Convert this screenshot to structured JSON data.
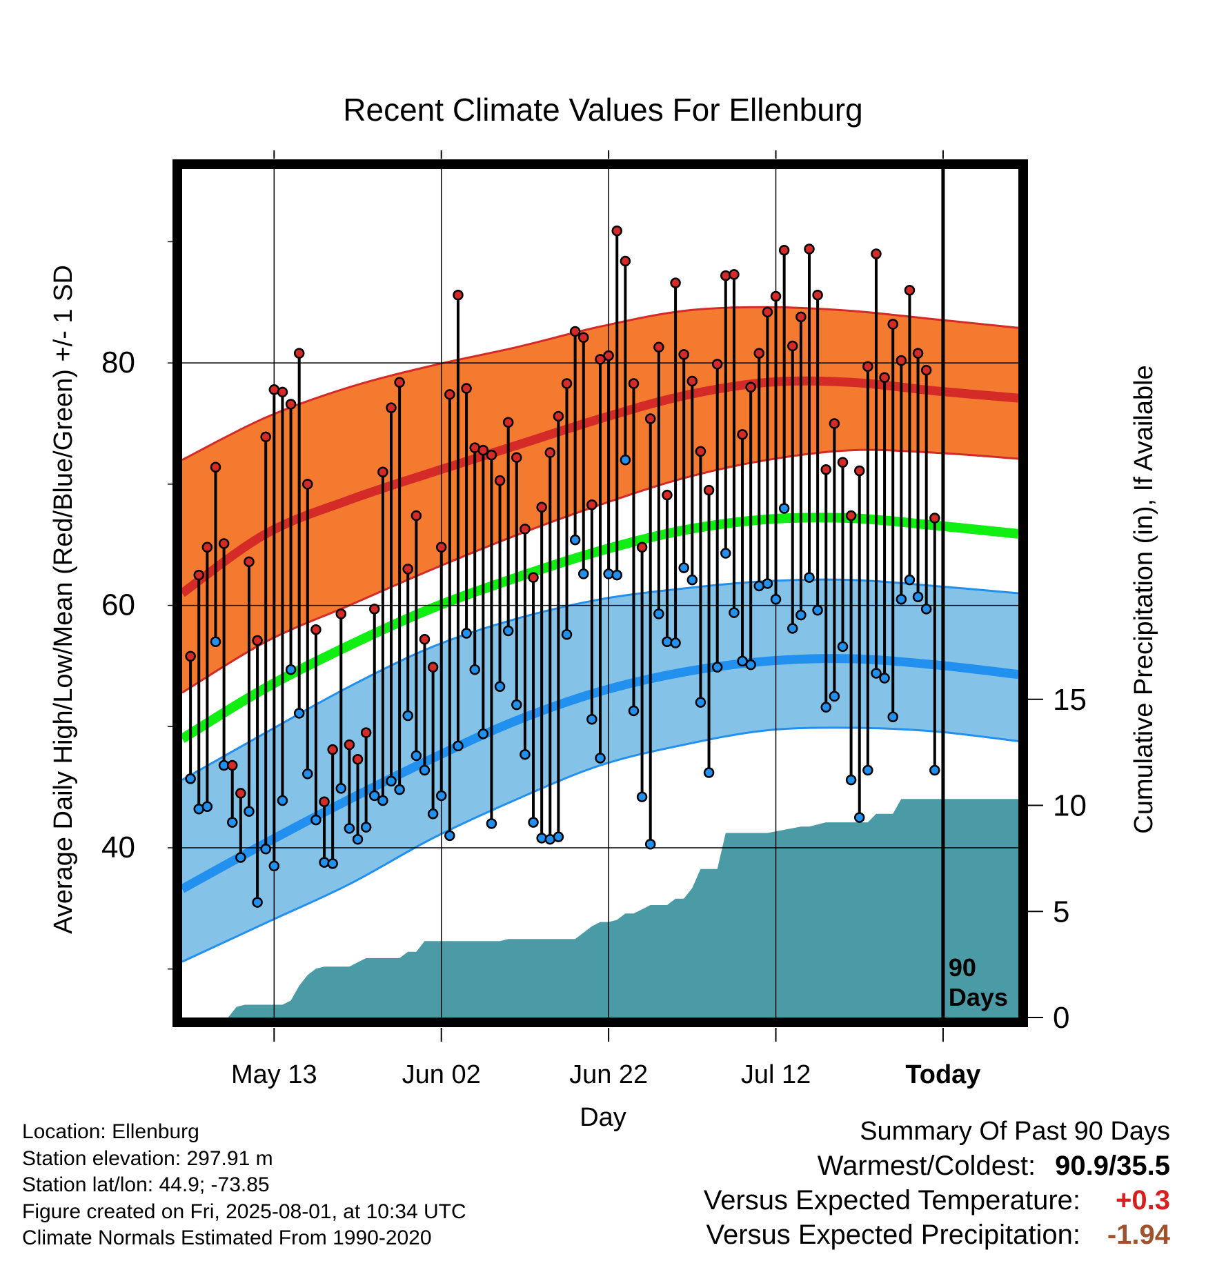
{
  "chart_data": {
    "type": "line",
    "title": "Recent Climate Values For Ellenburg",
    "xlabel": "Day",
    "ylabel": "Average Daily High/Low/Mean (Red/Blue/Green) +/- 1 SD",
    "ylabel_right": "Cumulative Precipitation (in), If Available",
    "x_ticks": [
      {
        "day": 10,
        "label": "May 13"
      },
      {
        "day": 30,
        "label": "Jun 02"
      },
      {
        "day": 50,
        "label": "Jun 22"
      },
      {
        "day": 70,
        "label": "Jul 12"
      },
      {
        "day": 90,
        "label": "Today"
      }
    ],
    "xlim": [
      -1,
      99
    ],
    "ylim": [
      26,
      96
    ],
    "y_ticks": [
      40,
      60,
      80
    ],
    "y2lim": [
      0,
      40
    ],
    "y2_ticks": [
      0,
      5,
      10,
      15
    ],
    "today_marker": {
      "day": 90,
      "label_line1": "90",
      "label_line2": "Days"
    },
    "normals": {
      "high_mean": [
        [
          -1,
          61.0
        ],
        [
          9,
          65.9
        ],
        [
          19,
          68.7
        ],
        [
          29,
          71.0
        ],
        [
          39,
          73.2
        ],
        [
          49,
          75.4
        ],
        [
          59,
          77.3
        ],
        [
          69,
          78.4
        ],
        [
          79,
          78.4
        ],
        [
          89,
          77.7
        ],
        [
          99,
          77.1
        ]
      ],
      "high_sd_upper": [
        [
          -1,
          72.0
        ],
        [
          9,
          75.5
        ],
        [
          19,
          78.0
        ],
        [
          29,
          79.8
        ],
        [
          39,
          81.3
        ],
        [
          49,
          83.0
        ],
        [
          59,
          84.3
        ],
        [
          69,
          84.6
        ],
        [
          79,
          84.3
        ],
        [
          89,
          83.6
        ],
        [
          99,
          82.9
        ]
      ],
      "high_sd_lower": [
        [
          -1,
          52.8
        ],
        [
          9,
          57.0
        ],
        [
          19,
          60.0
        ],
        [
          29,
          63.0
        ],
        [
          39,
          65.8
        ],
        [
          49,
          68.3
        ],
        [
          59,
          70.5
        ],
        [
          69,
          72.0
        ],
        [
          79,
          72.8
        ],
        [
          89,
          72.6
        ],
        [
          99,
          72.1
        ]
      ],
      "mean_normal": [
        [
          -1,
          49.0
        ],
        [
          9,
          53.2
        ],
        [
          19,
          56.7
        ],
        [
          29,
          59.8
        ],
        [
          39,
          62.3
        ],
        [
          49,
          64.5
        ],
        [
          59,
          66.2
        ],
        [
          69,
          67.1
        ],
        [
          79,
          67.2
        ],
        [
          89,
          66.6
        ],
        [
          99,
          65.9
        ]
      ],
      "low_mean": [
        [
          -1,
          36.6
        ],
        [
          9,
          40.4
        ],
        [
          19,
          44.0
        ],
        [
          29,
          47.4
        ],
        [
          39,
          50.5
        ],
        [
          49,
          52.9
        ],
        [
          59,
          54.5
        ],
        [
          69,
          55.4
        ],
        [
          79,
          55.6
        ],
        [
          89,
          55.1
        ],
        [
          99,
          54.3
        ]
      ],
      "low_sd_upper": [
        [
          -1,
          45.6
        ],
        [
          9,
          49.5
        ],
        [
          19,
          53.3
        ],
        [
          29,
          56.6
        ],
        [
          39,
          58.9
        ],
        [
          49,
          60.5
        ],
        [
          59,
          61.4
        ],
        [
          69,
          62.0
        ],
        [
          79,
          62.1
        ],
        [
          89,
          61.6
        ],
        [
          99,
          61.0
        ]
      ],
      "low_sd_lower": [
        [
          -1,
          30.6
        ],
        [
          9,
          33.8
        ],
        [
          19,
          37.0
        ],
        [
          29,
          40.8
        ],
        [
          39,
          44.0
        ],
        [
          49,
          46.8
        ],
        [
          59,
          48.5
        ],
        [
          69,
          49.7
        ],
        [
          79,
          49.9
        ],
        [
          89,
          49.6
        ],
        [
          99,
          48.8
        ]
      ]
    },
    "daily_temps": [
      {
        "day": 0,
        "high": 55.8,
        "low": 45.7
      },
      {
        "day": 1,
        "high": 62.5,
        "low": 43.2
      },
      {
        "day": 2,
        "high": 64.8,
        "low": 43.4
      },
      {
        "day": 3,
        "high": 71.4,
        "low": 57.0
      },
      {
        "day": 4,
        "high": 65.1,
        "low": 46.8
      },
      {
        "day": 5,
        "high": 46.8,
        "low": 42.1
      },
      {
        "day": 6,
        "high": 44.5,
        "low": 39.2
      },
      {
        "day": 7,
        "high": 63.6,
        "low": 43.0
      },
      {
        "day": 8,
        "high": 57.1,
        "low": 35.5
      },
      {
        "day": 9,
        "high": 73.9,
        "low": 39.9
      },
      {
        "day": 10,
        "high": 77.8,
        "low": 38.5
      },
      {
        "day": 11,
        "high": 77.6,
        "low": 43.9
      },
      {
        "day": 12,
        "high": 76.6,
        "low": 54.7
      },
      {
        "day": 13,
        "high": 80.8,
        "low": 51.1
      },
      {
        "day": 14,
        "high": 70.0,
        "low": 46.1
      },
      {
        "day": 15,
        "high": 58.0,
        "low": 42.3
      },
      {
        "day": 16,
        "high": 43.8,
        "low": 38.8
      },
      {
        "day": 17,
        "high": 48.1,
        "low": 38.7
      },
      {
        "day": 18,
        "high": 59.3,
        "low": 44.9
      },
      {
        "day": 19,
        "high": 48.5,
        "low": 41.6
      },
      {
        "day": 20,
        "high": 47.3,
        "low": 40.7
      },
      {
        "day": 21,
        "high": 49.5,
        "low": 41.7
      },
      {
        "day": 22,
        "high": 59.7,
        "low": 44.3
      },
      {
        "day": 23,
        "high": 71.0,
        "low": 43.9
      },
      {
        "day": 24,
        "high": 76.3,
        "low": 45.5
      },
      {
        "day": 25,
        "high": 78.4,
        "low": 44.8
      },
      {
        "day": 26,
        "high": 63.0,
        "low": 50.9
      },
      {
        "day": 27,
        "high": 67.4,
        "low": 47.6
      },
      {
        "day": 28,
        "high": 57.2,
        "low": 46.4
      },
      {
        "day": 29,
        "high": 54.9,
        "low": 42.8
      },
      {
        "day": 30,
        "high": 64.8,
        "low": 44.3
      },
      {
        "day": 31,
        "high": 77.4,
        "low": 41.0
      },
      {
        "day": 32,
        "high": 85.6,
        "low": 48.4
      },
      {
        "day": 33,
        "high": 77.9,
        "low": 57.7
      },
      {
        "day": 34,
        "high": 73.0,
        "low": 54.7
      },
      {
        "day": 35,
        "high": 72.8,
        "low": 49.4
      },
      {
        "day": 36,
        "high": 72.4,
        "low": 42.0
      },
      {
        "day": 37,
        "high": 70.3,
        "low": 53.3
      },
      {
        "day": 38,
        "high": 75.1,
        "low": 57.9
      },
      {
        "day": 39,
        "high": 72.2,
        "low": 51.8
      },
      {
        "day": 40,
        "high": 66.3,
        "low": 47.7
      },
      {
        "day": 41,
        "high": 62.3,
        "low": 42.1
      },
      {
        "day": 42,
        "high": 68.1,
        "low": 40.8
      },
      {
        "day": 43,
        "high": 72.6,
        "low": 40.7
      },
      {
        "day": 44,
        "high": 75.6,
        "low": 40.9
      },
      {
        "day": 45,
        "high": 78.3,
        "low": 57.6
      },
      {
        "day": 46,
        "high": 82.6,
        "low": 65.4
      },
      {
        "day": 47,
        "high": 82.1,
        "low": 62.6
      },
      {
        "day": 48,
        "high": 68.3,
        "low": 50.6
      },
      {
        "day": 49,
        "high": 80.3,
        "low": 47.4
      },
      {
        "day": 50,
        "high": 80.6,
        "low": 62.6
      },
      {
        "day": 51,
        "high": 90.9,
        "low": 62.5
      },
      {
        "day": 52,
        "high": 88.4,
        "low": 72.0
      },
      {
        "day": 53,
        "high": 78.3,
        "low": 51.3
      },
      {
        "day": 54,
        "high": 64.8,
        "low": 44.2
      },
      {
        "day": 55,
        "high": 75.4,
        "low": 40.3
      },
      {
        "day": 56,
        "high": 81.3,
        "low": 59.3
      },
      {
        "day": 57,
        "high": 69.1,
        "low": 57.0
      },
      {
        "day": 58,
        "high": 86.6,
        "low": 56.9
      },
      {
        "day": 59,
        "high": 80.7,
        "low": 63.1
      },
      {
        "day": 60,
        "high": 78.5,
        "low": 62.1
      },
      {
        "day": 61,
        "high": 72.7,
        "low": 52.0
      },
      {
        "day": 62,
        "high": 69.5,
        "low": 46.2
      },
      {
        "day": 63,
        "high": 79.9,
        "low": 54.9
      },
      {
        "day": 64,
        "high": 87.2,
        "low": 64.3
      },
      {
        "day": 65,
        "high": 87.3,
        "low": 59.4
      },
      {
        "day": 66,
        "high": 74.1,
        "low": 55.4
      },
      {
        "day": 67,
        "high": 78.0,
        "low": 55.1
      },
      {
        "day": 68,
        "high": 80.8,
        "low": 61.6
      },
      {
        "day": 69,
        "high": 84.2,
        "low": 61.8
      },
      {
        "day": 70,
        "high": 85.5,
        "low": 60.5
      },
      {
        "day": 71,
        "high": 89.3,
        "low": 68.0
      },
      {
        "day": 72,
        "high": 81.4,
        "low": 58.1
      },
      {
        "day": 73,
        "high": 83.8,
        "low": 59.2
      },
      {
        "day": 74,
        "high": 89.4,
        "low": 62.3
      },
      {
        "day": 75,
        "high": 85.6,
        "low": 59.6
      },
      {
        "day": 76,
        "high": 71.2,
        "low": 51.6
      },
      {
        "day": 77,
        "high": 75.0,
        "low": 52.5
      },
      {
        "day": 78,
        "high": 71.8,
        "low": 56.6
      },
      {
        "day": 79,
        "high": 67.4,
        "low": 45.6
      },
      {
        "day": 80,
        "high": 71.1,
        "low": 42.5
      },
      {
        "day": 81,
        "high": 79.7,
        "low": 46.4
      },
      {
        "day": 82,
        "high": 89.0,
        "low": 54.4
      },
      {
        "day": 83,
        "high": 78.8,
        "low": 54.0
      },
      {
        "day": 84,
        "high": 83.2,
        "low": 50.8
      },
      {
        "day": 85,
        "high": 80.2,
        "low": 60.5
      },
      {
        "day": 86,
        "high": 86.0,
        "low": 62.1
      },
      {
        "day": 87,
        "high": 80.8,
        "low": 60.7
      },
      {
        "day": 88,
        "high": 79.4,
        "low": 59.7
      },
      {
        "day": 89,
        "high": 67.2,
        "low": 46.4
      }
    ],
    "cumulative_precip": [
      [
        -1,
        0.0
      ],
      [
        4.5,
        0.0
      ],
      [
        5.5,
        0.5
      ],
      [
        6.5,
        0.6
      ],
      [
        11,
        0.6
      ],
      [
        12,
        0.8
      ],
      [
        13,
        1.5
      ],
      [
        14,
        2.0
      ],
      [
        15,
        2.3
      ],
      [
        16,
        2.4
      ],
      [
        19,
        2.4
      ],
      [
        20,
        2.6
      ],
      [
        21,
        2.8
      ],
      [
        25,
        2.8
      ],
      [
        26,
        3.1
      ],
      [
        27,
        3.1
      ],
      [
        28,
        3.6
      ],
      [
        37,
        3.6
      ],
      [
        38,
        3.7
      ],
      [
        46,
        3.7
      ],
      [
        47,
        4.0
      ],
      [
        48,
        4.3
      ],
      [
        49,
        4.5
      ],
      [
        50,
        4.5
      ],
      [
        51,
        4.6
      ],
      [
        52,
        4.9
      ],
      [
        53,
        4.9
      ],
      [
        54,
        5.1
      ],
      [
        55,
        5.3
      ],
      [
        57,
        5.3
      ],
      [
        58,
        5.6
      ],
      [
        59,
        5.6
      ],
      [
        60,
        6.1
      ],
      [
        61,
        7.0
      ],
      [
        63,
        7.0
      ],
      [
        64,
        8.7
      ],
      [
        69,
        8.7
      ],
      [
        73,
        9.0
      ],
      [
        74,
        9.0
      ],
      [
        76,
        9.2
      ],
      [
        81,
        9.2
      ],
      [
        82,
        9.6
      ],
      [
        84,
        9.6
      ],
      [
        85,
        10.3
      ],
      [
        90,
        10.3
      ],
      [
        99,
        10.3
      ]
    ],
    "colors": {
      "high_band": "#f47a2f",
      "high_line": "#d42a28",
      "low_band": "#85c2e8",
      "low_line": "#2290ee",
      "mean_line": "#11ee11",
      "precip": "#4a9ba5",
      "high_dot": "#d42a28",
      "low_dot": "#2290ee"
    }
  },
  "info": {
    "location": "Location: Ellenburg",
    "elevation": "Station elevation: 297.91 m",
    "latlon": "Station lat/lon: 44.9; -73.85",
    "created": "Figure created on Fri, 2025-08-01, at 10:34 UTC",
    "normals": "Climate Normals Estimated From 1990-2020"
  },
  "summary": {
    "title": "Summary Of Past 90 Days",
    "warm_label": "Warmest/Coldest:",
    "warm_value": "90.9/35.5",
    "temp_label": "Versus Expected Temperature:",
    "temp_value": "+0.3",
    "precip_label": "Versus Expected Precipitation:",
    "precip_value": "-1.94"
  }
}
